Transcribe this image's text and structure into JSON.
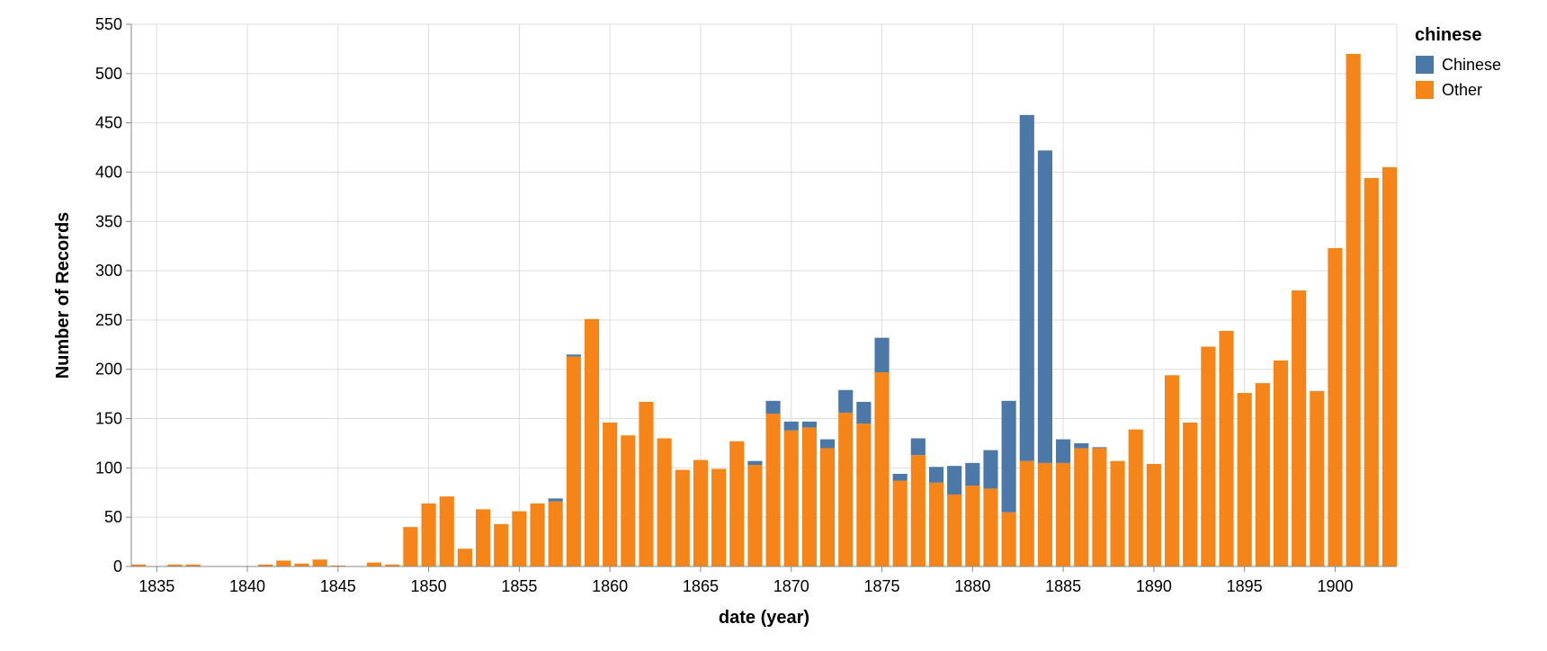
{
  "chart_data": {
    "type": "bar",
    "stacked": true,
    "xlabel": "date (year)",
    "ylabel": "Number of Records",
    "ylim": [
      0,
      550
    ],
    "xlim": [
      1833.6,
      1903.4
    ],
    "y_ticks": [
      0,
      50,
      100,
      150,
      200,
      250,
      300,
      350,
      400,
      450,
      500,
      550
    ],
    "x_ticks": [
      1835,
      1840,
      1845,
      1850,
      1855,
      1860,
      1865,
      1870,
      1875,
      1880,
      1885,
      1890,
      1895,
      1900
    ],
    "grid": true,
    "legend": {
      "title": "chinese",
      "position": "top-right",
      "entries": [
        {
          "label": "Chinese",
          "color": "#4c78a8"
        },
        {
          "label": "Other",
          "color": "#f58518"
        }
      ]
    },
    "x": [
      1834,
      1835,
      1836,
      1837,
      1838,
      1839,
      1840,
      1841,
      1842,
      1843,
      1844,
      1845,
      1846,
      1847,
      1848,
      1849,
      1850,
      1851,
      1852,
      1853,
      1854,
      1855,
      1856,
      1857,
      1858,
      1859,
      1860,
      1861,
      1862,
      1863,
      1864,
      1865,
      1866,
      1867,
      1868,
      1869,
      1870,
      1871,
      1872,
      1873,
      1874,
      1875,
      1876,
      1877,
      1878,
      1879,
      1880,
      1881,
      1882,
      1883,
      1884,
      1885,
      1886,
      1887,
      1888,
      1889,
      1890,
      1891,
      1892,
      1893,
      1894,
      1895,
      1896,
      1897,
      1898,
      1899,
      1900,
      1901,
      1902,
      1903
    ],
    "series": [
      {
        "name": "Other",
        "color": "#f58518",
        "values": [
          2,
          0,
          2,
          2,
          0,
          0,
          0,
          2,
          6,
          3,
          7,
          1,
          0,
          4,
          2,
          40,
          64,
          71,
          18,
          58,
          43,
          56,
          64,
          66,
          213,
          251,
          146,
          133,
          167,
          130,
          98,
          108,
          99,
          127,
          103,
          155,
          138,
          141,
          120,
          156,
          145,
          197,
          87,
          113,
          85,
          73,
          82,
          79,
          55,
          107,
          105,
          105,
          120,
          120,
          107,
          139,
          104,
          194,
          146,
          223,
          239,
          176,
          186,
          209,
          280,
          178,
          323,
          520,
          394,
          405
        ]
      },
      {
        "name": "Chinese",
        "color": "#4c78a8",
        "values": [
          0,
          0,
          0,
          0,
          0,
          0,
          0,
          0,
          0,
          0,
          0,
          0,
          0,
          0,
          0,
          0,
          0,
          0,
          0,
          0,
          0,
          0,
          0,
          3,
          2,
          0,
          0,
          0,
          0,
          0,
          0,
          0,
          0,
          0,
          4,
          13,
          9,
          6,
          9,
          23,
          22,
          35,
          7,
          17,
          16,
          29,
          23,
          39,
          113,
          351,
          317,
          24,
          5,
          1,
          0,
          0,
          0,
          0,
          0,
          0,
          0,
          0,
          0,
          0,
          0,
          0,
          0,
          0,
          0,
          0
        ]
      }
    ]
  }
}
